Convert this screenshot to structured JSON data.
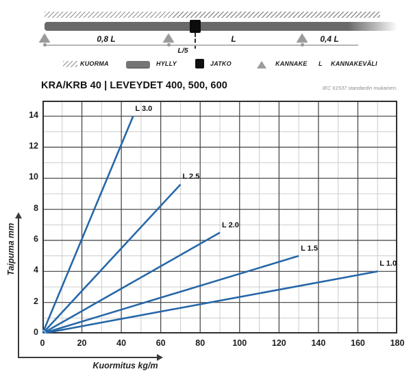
{
  "diagram": {
    "span_labels": {
      "left": "0,8 L",
      "overhang": "L/5",
      "mid": "L",
      "right": "0,4 L"
    }
  },
  "legend": {
    "kuorma": "KUORMA",
    "hylly": "HYLLY",
    "jatko": "JATKO",
    "kannake": "KANNAKE",
    "l_symbol": "L",
    "kannakevali": "KANNAKEVÄLI"
  },
  "header": {
    "title": "KRA/KRB 40 | LEVEYDET 400, 500, 600",
    "standard_note": "IEC 61537 standardin mukainen."
  },
  "chart_data": {
    "type": "line",
    "title": "",
    "xlabel": "Kuormitus kg/m",
    "ylabel": "Taipuma mm",
    "xlim": [
      0,
      180
    ],
    "ylim": [
      0,
      15
    ],
    "x_ticks": [
      0,
      20,
      40,
      60,
      80,
      100,
      120,
      140,
      160,
      180
    ],
    "y_ticks": [
      0,
      2,
      4,
      6,
      8,
      10,
      12,
      14
    ],
    "grid": {
      "minor_x_step": 10,
      "minor_y_step": 1,
      "major_x_step": 20,
      "major_y_step": 2,
      "on": true
    },
    "legend_position": "inline-labels",
    "line_color": "#2667a8",
    "minor_grid_color": "#cccccc",
    "major_grid_color": "#3c3c3c",
    "series": [
      {
        "name": "L 3.0",
        "points": [
          [
            0,
            0
          ],
          [
            46,
            14
          ]
        ]
      },
      {
        "name": "L 2.5",
        "points": [
          [
            0,
            0
          ],
          [
            70,
            9.6
          ]
        ]
      },
      {
        "name": "L 2.0",
        "points": [
          [
            0,
            0
          ],
          [
            90,
            6.5
          ]
        ]
      },
      {
        "name": "L 1.5",
        "points": [
          [
            0,
            0
          ],
          [
            130,
            5
          ]
        ]
      },
      {
        "name": "L 1.0",
        "points": [
          [
            0,
            0
          ],
          [
            170,
            4
          ]
        ]
      }
    ],
    "origin_marker": {
      "x": 0,
      "y": 0,
      "radius": 4.5
    }
  }
}
